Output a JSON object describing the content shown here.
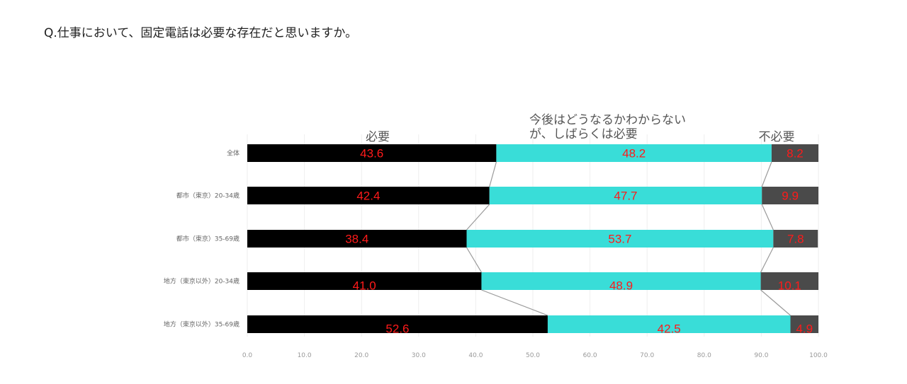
{
  "question": "Q.仕事において、固定電話は必要な存在だと思いますか。",
  "chart_data": {
    "type": "bar",
    "orientation": "horizontal",
    "stacked": true,
    "categories": [
      "全体",
      "都市（東京）20-34歳",
      "都市（東京）35-69歳",
      "地方（東京以外）20-34歳",
      "地方（東京以外）35-69歳"
    ],
    "series": [
      {
        "name": "必要",
        "color": "#000000",
        "values": [
          43.6,
          42.4,
          38.4,
          41.0,
          52.6
        ]
      },
      {
        "name": "今後はどうなるかわからないが、しばらくは必要",
        "color": "#39ddd8",
        "values": [
          48.2,
          47.7,
          53.7,
          48.9,
          42.5
        ]
      },
      {
        "name": "不必要",
        "color": "#4a4a4a",
        "values": [
          8.2,
          9.9,
          7.8,
          10.1,
          4.9
        ]
      }
    ],
    "legend_lines": [
      [
        "必要"
      ],
      [
        "今後はどうなるかわからない",
        "が、しばらくは必要"
      ],
      [
        "不必要"
      ]
    ],
    "xticks": [
      "0.0",
      "10.0",
      "20.0",
      "30.0",
      "40.0",
      "50.0",
      "60.0",
      "70.0",
      "80.0",
      "90.0",
      "100.0"
    ],
    "xlim": [
      0,
      100
    ],
    "grid": true,
    "legend_position": "top",
    "series_connectors": true
  }
}
